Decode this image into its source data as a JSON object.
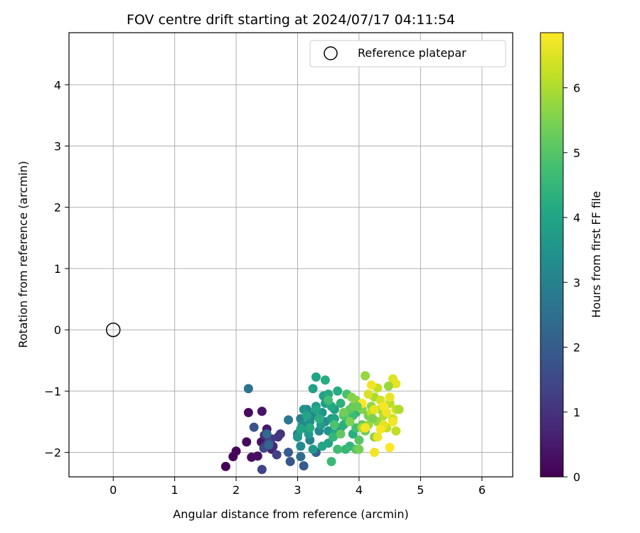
{
  "chart_data": {
    "type": "scatter",
    "title": "FOV centre drift starting at 2024/07/17 04:11:54",
    "xlabel": "Angular distance from reference (arcmin)",
    "ylabel": "Rotation from reference (arcmin)",
    "xlim": [
      -0.72,
      6.5
    ],
    "ylim": [
      -2.4,
      4.85
    ],
    "xticks": [
      0,
      1,
      2,
      3,
      4,
      5,
      6
    ],
    "yticks": [
      -2,
      -1,
      0,
      1,
      2,
      3,
      4
    ],
    "grid": true,
    "legend": {
      "placement": "top-right",
      "entries": [
        "Reference platepar"
      ]
    },
    "colorbar": {
      "label": "Hours from first FF file",
      "range": [
        0,
        6.85
      ],
      "ticks": [
        0,
        1,
        2,
        3,
        4,
        5,
        6
      ],
      "colormap": "viridis"
    },
    "reference_point": {
      "x": 0,
      "y": 0,
      "label": "Reference platepar"
    },
    "points": [
      [
        1.83,
        -2.23,
        0.0
      ],
      [
        1.95,
        -2.07,
        0.05
      ],
      [
        2.0,
        -1.98,
        0.1
      ],
      [
        2.17,
        -1.83,
        0.15
      ],
      [
        2.2,
        -1.35,
        0.2
      ],
      [
        2.25,
        -2.08,
        0.25
      ],
      [
        2.35,
        -2.06,
        0.3
      ],
      [
        2.41,
        -1.83,
        0.35
      ],
      [
        2.42,
        -1.33,
        0.4
      ],
      [
        2.5,
        -1.62,
        0.5
      ],
      [
        2.58,
        -1.95,
        0.6
      ],
      [
        2.48,
        -1.88,
        0.7
      ],
      [
        2.6,
        -1.9,
        0.8
      ],
      [
        2.46,
        -1.72,
        0.9
      ],
      [
        2.72,
        -1.7,
        1.0
      ],
      [
        2.68,
        -1.75,
        1.1
      ],
      [
        2.57,
        -1.78,
        1.2
      ],
      [
        2.66,
        -2.04,
        1.3
      ],
      [
        2.42,
        -2.28,
        1.4
      ],
      [
        2.45,
        -1.93,
        1.5
      ],
      [
        2.53,
        -1.85,
        1.6
      ],
      [
        2.29,
        -1.59,
        1.7
      ],
      [
        2.88,
        -2.15,
        1.8
      ],
      [
        3.1,
        -2.22,
        1.9
      ],
      [
        2.85,
        -2.0,
        2.0
      ],
      [
        3.3,
        -2.0,
        2.1
      ],
      [
        2.53,
        -1.88,
        2.2
      ],
      [
        2.5,
        -1.7,
        2.3
      ],
      [
        3.05,
        -2.07,
        2.4
      ],
      [
        2.2,
        -0.96,
        2.6
      ],
      [
        2.85,
        -1.47,
        2.7
      ],
      [
        3.0,
        -1.7,
        2.8
      ],
      [
        3.1,
        -1.6,
        2.9
      ],
      [
        3.05,
        -1.45,
        3.0
      ],
      [
        3.2,
        -1.8,
        3.05
      ],
      [
        3.15,
        -1.3,
        3.1
      ],
      [
        3.35,
        -1.65,
        3.15
      ],
      [
        3.25,
        -1.4,
        3.2
      ],
      [
        3.05,
        -1.9,
        3.25
      ],
      [
        3.45,
        -1.5,
        3.3
      ],
      [
        3.08,
        -1.55,
        3.35
      ],
      [
        3.2,
        -1.5,
        3.4
      ],
      [
        3.1,
        -1.3,
        3.45
      ],
      [
        3.4,
        -1.35,
        3.5
      ],
      [
        3.5,
        -1.65,
        3.55
      ],
      [
        3.0,
        -1.75,
        3.6
      ],
      [
        3.25,
        -1.95,
        3.62
      ],
      [
        3.3,
        -1.25,
        3.65
      ],
      [
        3.55,
        -1.45,
        3.7
      ],
      [
        3.18,
        -1.7,
        3.72
      ],
      [
        3.45,
        -1.2,
        3.75
      ],
      [
        3.38,
        -1.55,
        3.78
      ],
      [
        3.6,
        -1.3,
        3.8
      ],
      [
        3.7,
        -1.6,
        3.82
      ],
      [
        3.25,
        -0.96,
        3.85
      ],
      [
        3.42,
        -1.08,
        3.9
      ],
      [
        3.5,
        -1.85,
        3.92
      ],
      [
        3.3,
        -0.77,
        3.95
      ],
      [
        3.6,
        -1.45,
        3.97
      ],
      [
        3.15,
        -1.4,
        4.0
      ],
      [
        3.05,
        -1.62,
        4.02
      ],
      [
        3.4,
        -1.9,
        4.05
      ],
      [
        3.6,
        -1.7,
        4.08
      ],
      [
        3.3,
        -1.3,
        4.1
      ],
      [
        3.55,
        -1.25,
        4.12
      ],
      [
        3.5,
        -1.05,
        4.15
      ],
      [
        3.8,
        -1.5,
        4.18
      ],
      [
        3.2,
        -1.6,
        4.2
      ],
      [
        3.65,
        -1.0,
        4.22
      ],
      [
        3.45,
        -0.82,
        4.25
      ],
      [
        3.9,
        -1.7,
        4.28
      ],
      [
        3.35,
        -1.45,
        4.3
      ],
      [
        3.75,
        -1.55,
        4.32
      ],
      [
        3.7,
        -1.2,
        4.35
      ],
      [
        3.95,
        -1.35,
        4.4
      ],
      [
        3.85,
        -1.9,
        4.45
      ],
      [
        3.58,
        -1.75,
        4.5
      ],
      [
        3.78,
        -1.95,
        4.55
      ],
      [
        3.55,
        -2.15,
        4.6
      ],
      [
        3.9,
        -1.4,
        4.65
      ],
      [
        3.65,
        -1.95,
        4.7
      ],
      [
        3.5,
        -1.15,
        4.75
      ],
      [
        3.95,
        -1.6,
        4.8
      ],
      [
        3.8,
        -1.05,
        4.85
      ],
      [
        3.6,
        -1.55,
        4.9
      ],
      [
        3.75,
        -1.4,
        4.95
      ],
      [
        3.95,
        -1.95,
        5.0
      ],
      [
        4.0,
        -1.8,
        5.05
      ],
      [
        3.85,
        -1.3,
        5.1
      ],
      [
        3.7,
        -1.7,
        5.15
      ],
      [
        4.05,
        -1.55,
        5.2
      ],
      [
        3.9,
        -1.25,
        5.25
      ],
      [
        4.1,
        -1.65,
        5.3
      ],
      [
        3.75,
        -1.35,
        5.35
      ],
      [
        4.0,
        -1.95,
        5.4
      ],
      [
        4.15,
        -1.4,
        5.45
      ],
      [
        3.85,
        -1.5,
        5.5
      ],
      [
        4.05,
        -1.3,
        5.55
      ],
      [
        4.25,
        -1.75,
        5.6
      ],
      [
        3.95,
        -1.15,
        5.65
      ],
      [
        4.2,
        -1.25,
        5.7
      ],
      [
        4.1,
        -0.75,
        5.75
      ],
      [
        4.3,
        -1.5,
        5.8
      ],
      [
        4.15,
        -1.55,
        5.85
      ],
      [
        4.35,
        -1.3,
        5.9
      ],
      [
        4.05,
        -1.6,
        5.95
      ],
      [
        4.25,
        -1.1,
        6.0
      ],
      [
        4.4,
        -1.4,
        6.05
      ],
      [
        4.5,
        -1.2,
        6.1
      ],
      [
        4.2,
        -1.35,
        6.15
      ],
      [
        4.45,
        -1.6,
        6.2
      ],
      [
        4.3,
        -0.95,
        6.25
      ],
      [
        4.55,
        -1.45,
        6.3
      ],
      [
        4.6,
        -1.3,
        6.35
      ],
      [
        4.35,
        -1.15,
        6.4
      ],
      [
        4.15,
        -1.05,
        6.45
      ],
      [
        4.55,
        -0.8,
        6.5
      ],
      [
        4.4,
        -1.55,
        6.55
      ],
      [
        4.6,
        -0.88,
        6.58
      ],
      [
        4.25,
        -1.3,
        6.6
      ],
      [
        4.5,
        -1.1,
        6.62
      ],
      [
        4.3,
        -1.75,
        6.65
      ],
      [
        4.45,
        -1.35,
        6.68
      ],
      [
        4.2,
        -0.9,
        6.7
      ],
      [
        4.25,
        -2.0,
        6.72
      ],
      [
        4.55,
        -1.5,
        6.74
      ],
      [
        4.4,
        -1.25,
        6.76
      ],
      [
        4.1,
        -1.6,
        6.78
      ],
      [
        4.35,
        -1.62,
        6.8
      ],
      [
        4.5,
        -1.92,
        6.82
      ],
      [
        4.05,
        -1.2,
        6.84
      ],
      [
        4.6,
        -1.65,
        6.2
      ],
      [
        4.65,
        -1.3,
        6.0
      ],
      [
        4.48,
        -0.92,
        5.8
      ],
      [
        4.22,
        -1.45,
        5.5
      ],
      [
        3.97,
        -1.25,
        5.3
      ],
      [
        3.88,
        -1.1,
        5.6
      ]
    ]
  }
}
